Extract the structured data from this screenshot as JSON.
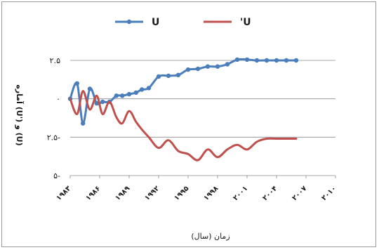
{
  "chart_data": {
    "type": "line",
    "title": "",
    "xlabel": "زمان (سال)",
    "ylabel": "(U) و ('U) آماره",
    "xlim": [
      1983,
      2010
    ],
    "ylim": [
      -5,
      2.5
    ],
    "x_ticks": [
      1983,
      1986,
      1989,
      1992,
      1995,
      1998,
      2001,
      2004,
      2007,
      2010
    ],
    "x_tick_labels": [
      "۱۹۸۳",
      "۱۹۸۶",
      "۱۹۸۹",
      "۱۹۹۲",
      "۱۹۹۵",
      "۱۹۹۸",
      "۲۰۰۱",
      "۲۰۰۴",
      "۲۰۰۷",
      "۲۰۱۰"
    ],
    "y_ticks": [
      2.5,
      0,
      -2.5,
      -5
    ],
    "y_tick_labels": [
      "۲.۵",
      "۰",
      "۲.۵-",
      "۵-"
    ],
    "grid": true,
    "legend": "top-center",
    "series": [
      {
        "name": "U",
        "color": "#4a7ebb",
        "markers": true,
        "x": [
          1983.0,
          1983.7,
          1984.3,
          1985.0,
          1985.7,
          1986.3,
          1987.0,
          1987.7,
          1988.3,
          1989.0,
          1989.7,
          1990.3,
          1991.0,
          1992.0,
          1993.0,
          1994.0,
          1995.0,
          1996.0,
          1997.0,
          1998.0,
          1999.0,
          2000.0,
          2001.0,
          2002.0,
          2003.0,
          2004.0,
          2005.0,
          2006.0
        ],
        "y": [
          0.0,
          1.0,
          -1.6,
          0.65,
          -0.3,
          -0.2,
          -0.2,
          0.2,
          0.2,
          0.3,
          0.4,
          0.6,
          0.7,
          1.45,
          1.5,
          1.55,
          1.9,
          1.95,
          2.1,
          2.1,
          2.25,
          2.55,
          2.55,
          2.5,
          2.5,
          2.5,
          2.5,
          2.5
        ]
      },
      {
        "name": "'U",
        "color": "#c0504d",
        "markers": false,
        "x": [
          1983.0,
          1983.7,
          1984.3,
          1985.0,
          1985.7,
          1986.3,
          1987.0,
          1987.7,
          1988.3,
          1989.0,
          1989.7,
          1990.3,
          1991.0,
          1992.0,
          1993.0,
          1994.0,
          1995.0,
          1996.0,
          1997.0,
          1998.0,
          1999.0,
          2000.0,
          2001.0,
          2002.0,
          2003.0,
          2004.0,
          2005.0,
          2006.0
        ],
        "y": [
          0.0,
          -1.0,
          0.5,
          -0.7,
          0.2,
          -1.0,
          -0.2,
          -1.2,
          -1.6,
          -0.8,
          -1.5,
          -2.0,
          -2.5,
          -3.2,
          -2.7,
          -3.4,
          -3.6,
          -4.0,
          -3.3,
          -3.8,
          -3.3,
          -3.0,
          -3.3,
          -2.8,
          -2.6,
          -2.6,
          -2.6,
          -2.6
        ]
      }
    ]
  }
}
